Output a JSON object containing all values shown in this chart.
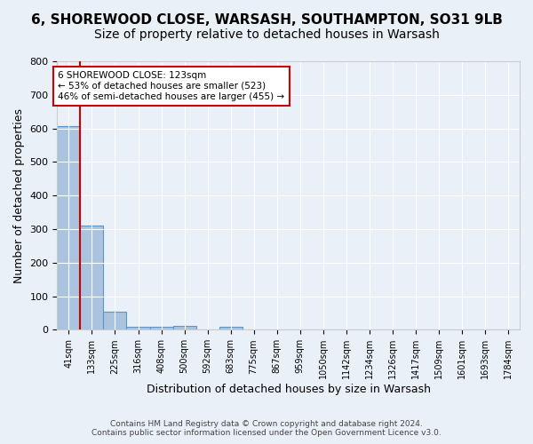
{
  "title": "6, SHOREWOOD CLOSE, WARSASH, SOUTHAMPTON, SO31 9LB",
  "subtitle": "Size of property relative to detached houses in Warsash",
  "xlabel": "Distribution of detached houses by size in Warsash",
  "ylabel": "Number of detached properties",
  "footer_line1": "Contains HM Land Registry data © Crown copyright and database right 2024.",
  "footer_line2": "Contains public sector information licensed under the Open Government Licence v3.0.",
  "bin_labels": [
    "41sqm",
    "133sqm",
    "225sqm",
    "316sqm",
    "408sqm",
    "500sqm",
    "592sqm",
    "683sqm",
    "775sqm",
    "867sqm",
    "959sqm",
    "1050sqm",
    "1142sqm",
    "1234sqm",
    "1326sqm",
    "1417sqm",
    "1509sqm",
    "1601sqm",
    "1693sqm",
    "1784sqm"
  ],
  "bar_values": [
    607,
    310,
    53,
    10,
    10,
    12,
    0,
    8,
    0,
    0,
    0,
    0,
    0,
    0,
    0,
    0,
    0,
    0,
    0,
    0
  ],
  "bar_color": "#aac4e0",
  "bar_edge_color": "#5a96c8",
  "property_line_x": 1,
  "property_line_color": "#cc0000",
  "annotation_text": "6 SHOREWOOD CLOSE: 123sqm\n← 53% of detached houses are smaller (523)\n46% of semi-detached houses are larger (455) →",
  "annotation_box_color": "white",
  "annotation_box_edge_color": "#cc0000",
  "ylim": [
    0,
    800
  ],
  "yticks": [
    0,
    100,
    200,
    300,
    400,
    500,
    600,
    700,
    800
  ],
  "background_color": "#eaf0f8",
  "plot_background_color": "#eaf0f8",
  "title_fontsize": 11,
  "subtitle_fontsize": 10,
  "axis_label_fontsize": 9,
  "tick_fontsize": 8,
  "figsize": [
    6.0,
    5.0
  ],
  "dpi": 100
}
